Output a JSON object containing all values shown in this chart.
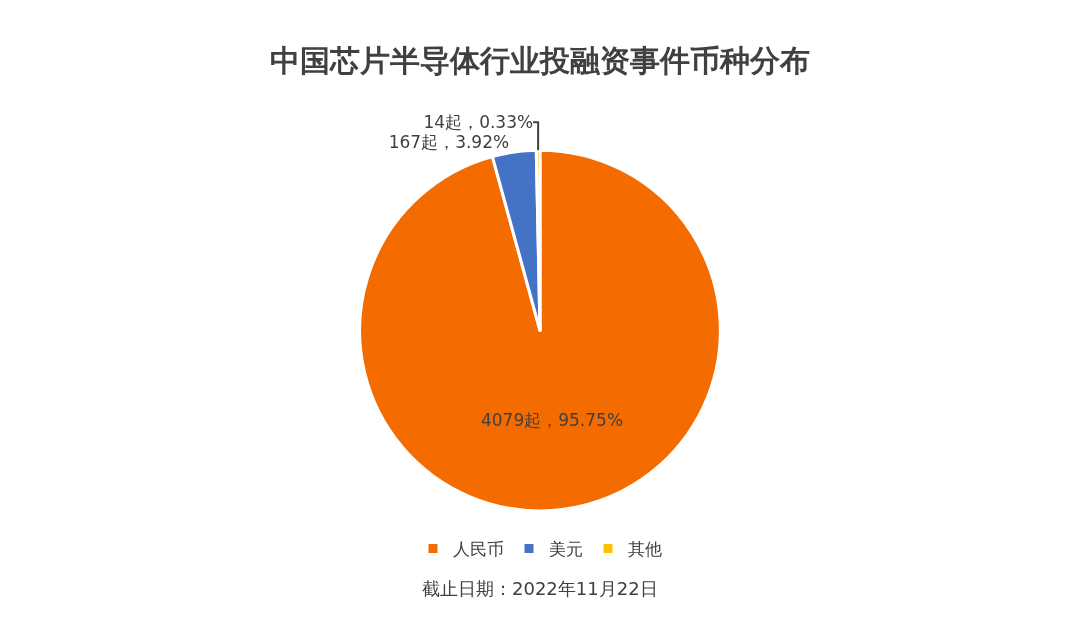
{
  "chart_data": {
    "type": "pie",
    "title": "中国芯片半导体行业投融资事件币种分布",
    "categories": [
      "人民币",
      "美元",
      "其他"
    ],
    "values": [
      4079,
      167,
      14
    ],
    "colors": [
      "#f46b00",
      "#4472c4",
      "#ffc000"
    ],
    "value_labels": [
      "4079起，95.75%",
      "167起，3.92%",
      "14起，0.33%"
    ],
    "legend": "bottom",
    "annotations": [
      "截止日期：2022年11月22日"
    ]
  }
}
